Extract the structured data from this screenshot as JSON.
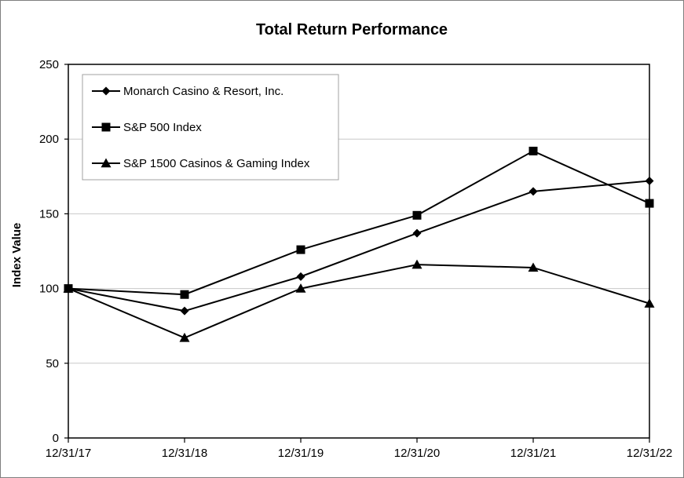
{
  "chart_data": {
    "type": "line",
    "title": "Total Return Performance",
    "xlabel": "",
    "ylabel": "Index Value",
    "categories": [
      "12/31/17",
      "12/31/18",
      "12/31/19",
      "12/31/20",
      "12/31/21",
      "12/31/22"
    ],
    "ylim": [
      0,
      250
    ],
    "yticks": [
      0,
      50,
      100,
      150,
      200,
      250
    ],
    "grid": true,
    "legend_position": "top-left",
    "series": [
      {
        "name": "Monarch Casino & Resort, Inc.",
        "marker": "diamond",
        "values": [
          100,
          85,
          108,
          137,
          165,
          172
        ]
      },
      {
        "name": "S&P 500 Index",
        "marker": "square",
        "values": [
          100,
          96,
          126,
          149,
          192,
          157
        ]
      },
      {
        "name": "S&P 1500 Casinos & Gaming Index",
        "marker": "triangle",
        "values": [
          100,
          67,
          100,
          116,
          114,
          90
        ]
      }
    ]
  }
}
